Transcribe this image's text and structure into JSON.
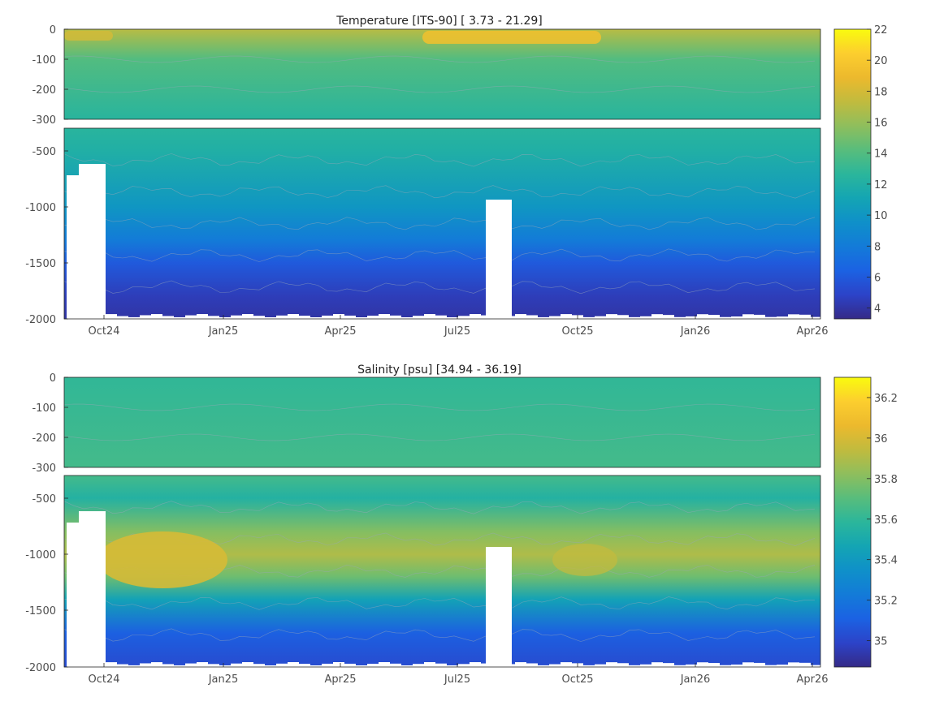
{
  "chart_data": [
    {
      "type": "heatmap",
      "title": "Temperature [ITS-90]   [ 3.73 - 21.29]",
      "xlabel": "",
      "ylabel": "",
      "x_ticks": [
        "Oct24",
        "Jan25",
        "Apr25",
        "Jul25",
        "Oct25",
        "Jan26",
        "Apr26"
      ],
      "upper_y_ticks": [
        "0",
        "-100",
        "-200",
        "-300"
      ],
      "upper_ylim": [
        -300,
        0
      ],
      "lower_y_ticks": [
        "-500",
        "-1000",
        "-1500",
        "-2000"
      ],
      "lower_ylim": [
        -2000,
        -300
      ],
      "colorbar": {
        "range": [
          3.3,
          22
        ],
        "ticks": [
          "4",
          "6",
          "8",
          "10",
          "12",
          "14",
          "16",
          "18",
          "20",
          "22"
        ]
      },
      "data_range": [
        3.73,
        21.29
      ],
      "depth_profile_approx": [
        {
          "depth": 0,
          "value": 17
        },
        {
          "depth": -100,
          "value": 14
        },
        {
          "depth": -300,
          "value": 12.5
        },
        {
          "depth": -500,
          "value": 12
        },
        {
          "depth": -1000,
          "value": 10
        },
        {
          "depth": -1300,
          "value": 8
        },
        {
          "depth": -1500,
          "value": 6
        },
        {
          "depth": -1800,
          "value": 4.5
        },
        {
          "depth": -2000,
          "value": 4
        }
      ]
    },
    {
      "type": "heatmap",
      "title": "Salinity [psu]   [34.94 - 36.19]",
      "xlabel": "",
      "ylabel": "",
      "x_ticks": [
        "Oct24",
        "Jan25",
        "Apr25",
        "Jul25",
        "Oct25",
        "Jan26",
        "Apr26"
      ],
      "upper_y_ticks": [
        "0",
        "-100",
        "-200",
        "-300"
      ],
      "upper_ylim": [
        -300,
        0
      ],
      "lower_y_ticks": [
        "-500",
        "-1000",
        "-1500",
        "-2000"
      ],
      "lower_ylim": [
        -2000,
        -300
      ],
      "colorbar": {
        "range": [
          34.87,
          36.3
        ],
        "ticks": [
          "35",
          "35.2",
          "35.4",
          "35.6",
          "35.8",
          "36",
          "36.2"
        ]
      },
      "data_range": [
        34.94,
        36.19
      ],
      "depth_profile_approx": [
        {
          "depth": 0,
          "value": 35.6
        },
        {
          "depth": -300,
          "value": 35.65
        },
        {
          "depth": -500,
          "value": 35.55
        },
        {
          "depth": -800,
          "value": 35.8
        },
        {
          "depth": -1000,
          "value": 35.9
        },
        {
          "depth": -1200,
          "value": 35.75
        },
        {
          "depth": -1400,
          "value": 35.45
        },
        {
          "depth": -1700,
          "value": 35.1
        },
        {
          "depth": -2000,
          "value": 35.02
        }
      ]
    }
  ]
}
